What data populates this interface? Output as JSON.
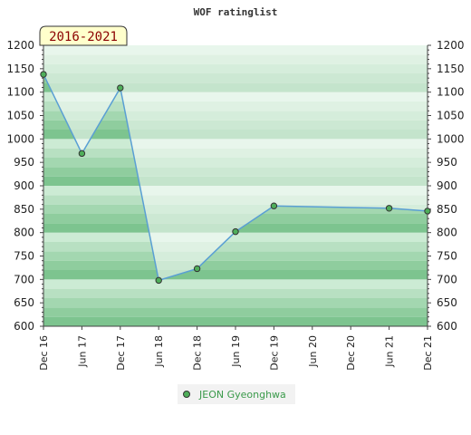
{
  "chart_data": {
    "type": "area",
    "title": "WOF ratinglist",
    "period_label": "2016-2021",
    "x_labels": [
      "Dec 16",
      "Jun 17",
      "Dec 17",
      "Jun 18",
      "Dec 18",
      "Jun 19",
      "Dec 19",
      "Jun 20",
      "Dec 20",
      "Jun 21",
      "Dec 21"
    ],
    "y_ticks": [
      600,
      650,
      700,
      750,
      800,
      850,
      900,
      950,
      1000,
      1050,
      1100,
      1150,
      1200
    ],
    "ylim": [
      600,
      1200
    ],
    "grid": true,
    "legend_position": "bottom",
    "series": [
      {
        "name": "JEON Gyeonghwa",
        "color": "#5a9fd4",
        "marker_color": "#4fae5a",
        "points": [
          {
            "x": "Dec 16",
            "y": 1138
          },
          {
            "x": "Jun 17",
            "y": 969
          },
          {
            "x": "Dec 17",
            "y": 1109
          },
          {
            "x": "Jun 18",
            "y": 698
          },
          {
            "x": "Dec 18",
            "y": 723
          },
          {
            "x": "Jun 19",
            "y": 802
          },
          {
            "x": "Dec 19",
            "y": 857
          },
          {
            "x": "Jun 21",
            "y": 852
          },
          {
            "x": "Dec 21",
            "y": 846
          }
        ]
      }
    ]
  }
}
